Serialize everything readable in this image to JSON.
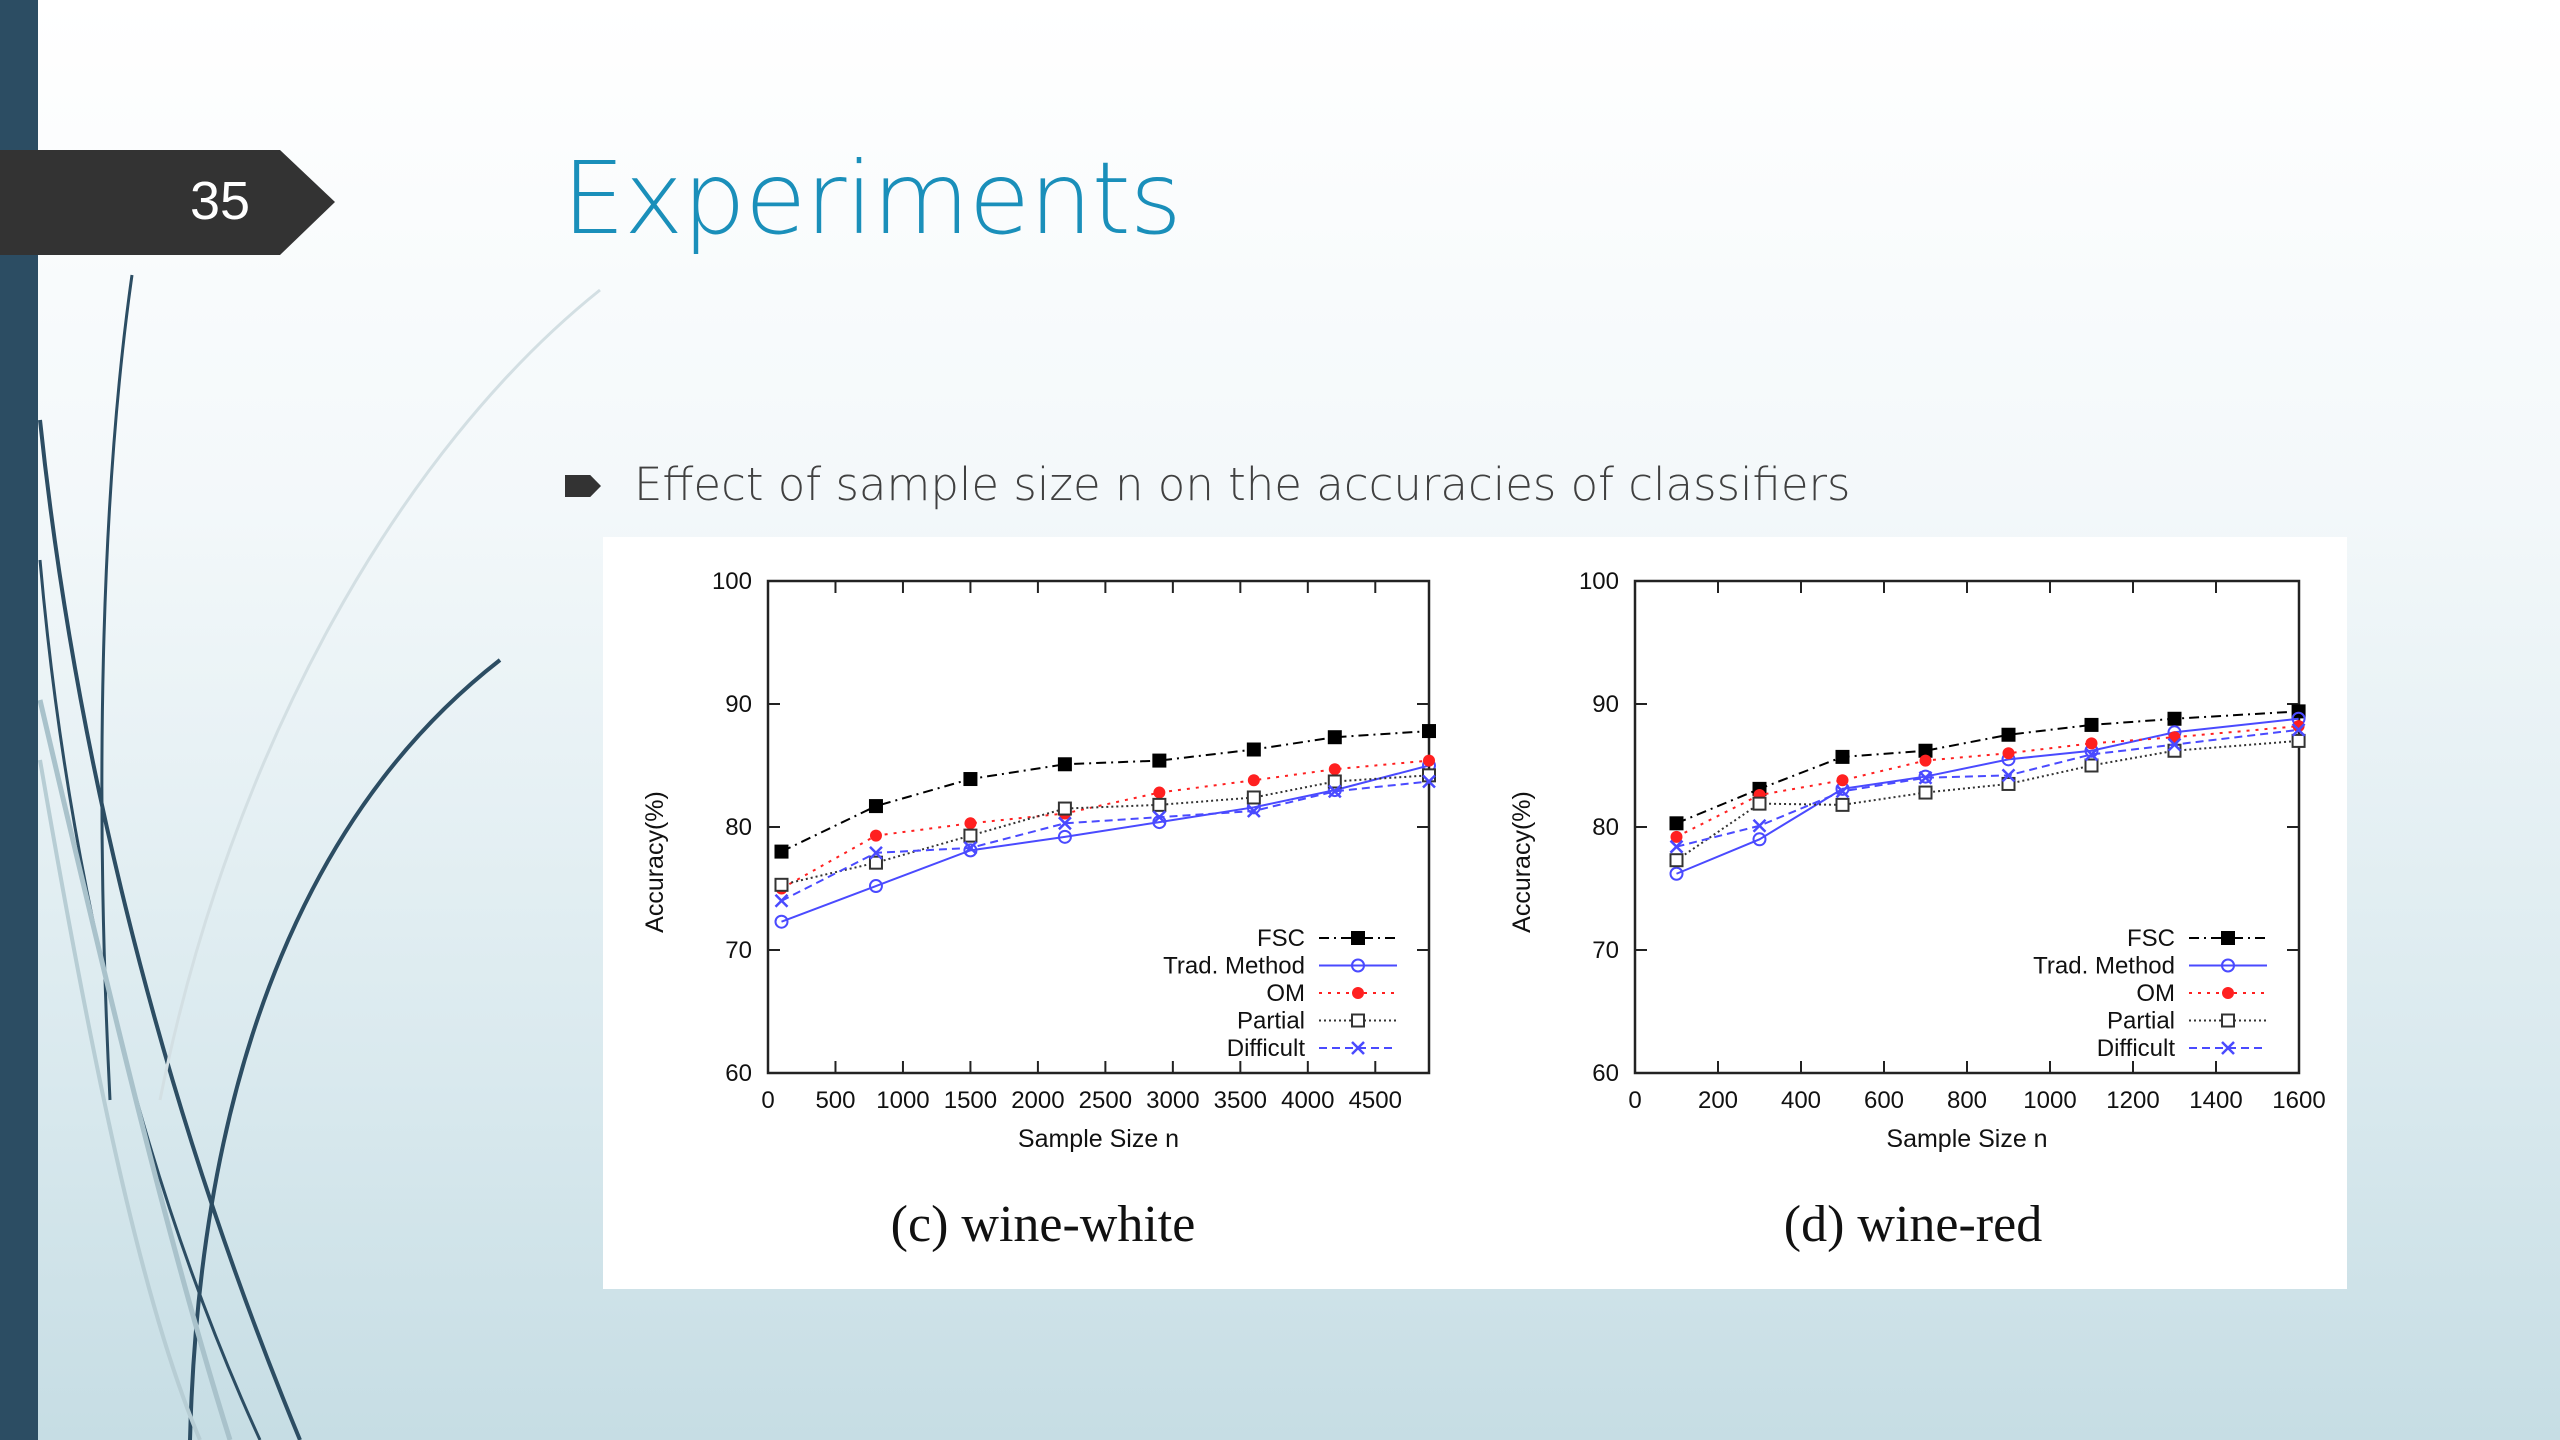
{
  "slide": {
    "number": "35",
    "title": "Experiments",
    "bullet": "Effect of sample size n on the accuracies of classifiers",
    "colors": {
      "title": "#1a8fba",
      "left_bar": "#2c4d63",
      "number_tab": "#333333"
    }
  },
  "chart_data": [
    {
      "type": "line",
      "caption": "(c)  wine-white",
      "xlabel": "Sample Size n",
      "ylabel": "Accuracy(%)",
      "xlim": [
        0,
        4898
      ],
      "ylim": [
        60,
        100
      ],
      "xticks": [
        0,
        500,
        1000,
        1500,
        2000,
        2500,
        3000,
        3500,
        4000,
        4500
      ],
      "yticks": [
        60,
        70,
        80,
        90,
        100
      ],
      "grid": false,
      "legend": "bottom-right",
      "x": [
        100,
        800,
        1500,
        2200,
        2900,
        3600,
        4200,
        4898
      ],
      "series": [
        {
          "name": "FSC",
          "color": "#000000",
          "marker": "filled-square",
          "dash": "dash-dot",
          "values": [
            78.0,
            81.7,
            83.9,
            85.1,
            85.4,
            86.3,
            87.3,
            87.8
          ]
        },
        {
          "name": "Trad. Method",
          "color": "#4a4aff",
          "marker": "open-circle",
          "dash": "solid",
          "values": [
            72.3,
            75.2,
            78.1,
            79.2,
            80.4,
            81.6,
            83.0,
            85.0
          ]
        },
        {
          "name": "OM",
          "color": "#ff2020",
          "marker": "filled-circle",
          "dash": "dotted",
          "values": [
            75.0,
            79.3,
            80.3,
            81.1,
            82.8,
            83.8,
            84.7,
            85.4
          ]
        },
        {
          "name": "Partial",
          "color": "#333333",
          "marker": "open-square",
          "dash": "fine-dotted",
          "values": [
            75.3,
            77.1,
            79.3,
            81.5,
            81.8,
            82.4,
            83.7,
            84.2
          ]
        },
        {
          "name": "Difficult",
          "color": "#4a4aff",
          "marker": "cross",
          "dash": "dashed",
          "values": [
            74.0,
            77.9,
            78.3,
            80.3,
            80.8,
            81.3,
            82.9,
            83.7
          ]
        }
      ]
    },
    {
      "type": "line",
      "caption": "(d)  wine-red",
      "xlabel": "Sample Size n",
      "ylabel": "Accuracy(%)",
      "xlim": [
        0,
        1600
      ],
      "ylim": [
        60,
        100
      ],
      "xticks": [
        0,
        200,
        400,
        600,
        800,
        1000,
        1200,
        1400,
        1600
      ],
      "yticks": [
        60,
        70,
        80,
        90,
        100
      ],
      "grid": false,
      "legend": "bottom-right",
      "x": [
        100,
        300,
        500,
        700,
        900,
        1100,
        1300,
        1599
      ],
      "series": [
        {
          "name": "FSC",
          "color": "#000000",
          "marker": "filled-square",
          "dash": "dash-dot",
          "values": [
            80.3,
            83.1,
            85.7,
            86.2,
            87.5,
            88.3,
            88.8,
            89.4
          ]
        },
        {
          "name": "Trad. Method",
          "color": "#4a4aff",
          "marker": "open-circle",
          "dash": "solid",
          "values": [
            76.2,
            79.0,
            83.1,
            84.1,
            85.5,
            86.2,
            87.7,
            88.8
          ]
        },
        {
          "name": "OM",
          "color": "#ff2020",
          "marker": "filled-circle",
          "dash": "dotted",
          "values": [
            79.2,
            82.6,
            83.8,
            85.4,
            86.0,
            86.8,
            87.3,
            88.2
          ]
        },
        {
          "name": "Partial",
          "color": "#333333",
          "marker": "open-square",
          "dash": "fine-dotted",
          "values": [
            77.3,
            81.9,
            81.8,
            82.8,
            83.5,
            85.0,
            86.2,
            87.0
          ]
        },
        {
          "name": "Difficult",
          "color": "#4a4aff",
          "marker": "cross",
          "dash": "dashed",
          "values": [
            78.4,
            80.1,
            82.9,
            84.0,
            84.2,
            85.9,
            86.7,
            87.9
          ]
        }
      ]
    }
  ]
}
